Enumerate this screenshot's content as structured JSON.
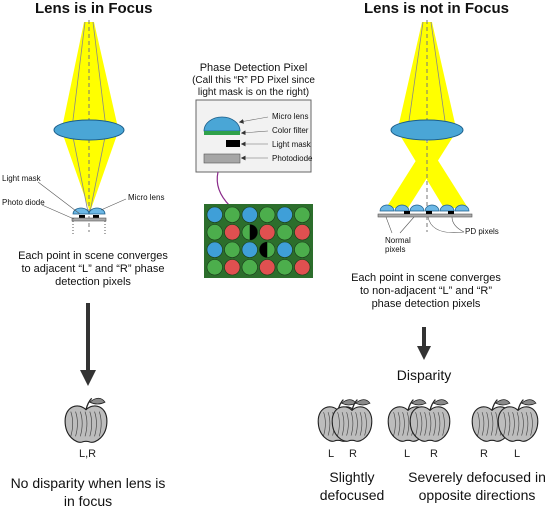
{
  "left": {
    "title": "Lens is in Focus",
    "light_mask_label": "Light mask",
    "photo_diode_label": "Photo diode",
    "micro_lens_label": "Micro lens",
    "description": "Each point in scene converges to adjacent “L” and “R” phase detection pixels",
    "apple_label": "L,R",
    "result": "No disparity when lens is in focus"
  },
  "right": {
    "title": "Lens is not in Focus",
    "normal_pixels_label": "Normal pixels",
    "pd_pixels_label": "PD pixels",
    "description": "Each point in scene converges to non-adjacent “L” and “R” phase detection pixels",
    "disparity_label": "Disparity",
    "apples": [
      {
        "left": "L",
        "right": "R"
      },
      {
        "left": "L",
        "right": "R"
      },
      {
        "left": "R",
        "right": "L"
      }
    ],
    "slightly_label": "Slightly defocused",
    "severely_label": "Severely defocused in opposite directions"
  },
  "center": {
    "title_line1": "Phase Detection Pixel",
    "title_line2": "(Call this “R” PD Pixel since",
    "title_line3": "light mask is on the right)",
    "legend": {
      "micro_lens": "Micro lens",
      "color_filter": "Color filter",
      "light_mask": "Light mask",
      "photodiode": "Photodiode"
    }
  },
  "colors": {
    "beam": "#ffff00",
    "lens": "#4aa6d6",
    "arrow": "#333333",
    "pixel_red": "#e05050",
    "pixel_green": "#4cae4c",
    "pixel_blue": "#3f9fd8",
    "connector": "#8a2a8a"
  }
}
